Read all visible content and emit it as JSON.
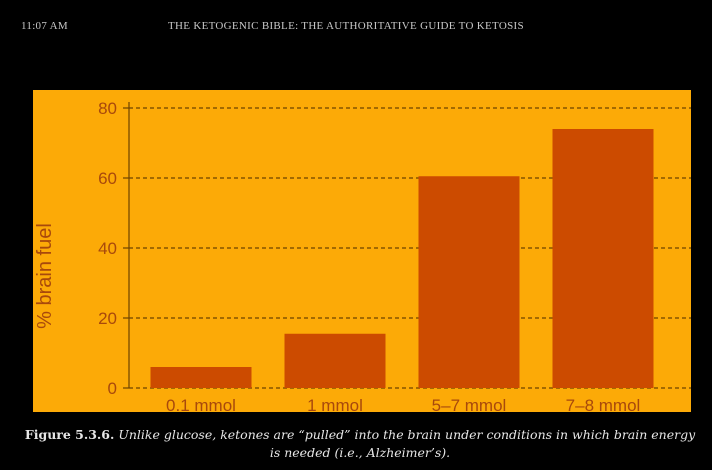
{
  "status_bar": {
    "time": "11:07 AM",
    "book_title": "THE KETOGENIC BIBLE: THE AUTHORITATIVE GUIDE TO KETOSIS"
  },
  "colors": {
    "page_background": "#000000",
    "plot_background": "#fcaa07",
    "bar": "#cc4b00",
    "axis_text": "#a8490c",
    "grid": "#6e4300"
  },
  "chart_data": {
    "type": "bar",
    "categories": [
      "0.1 mmol",
      "1 mmol",
      "5–7 mmol",
      "7–8 mmol"
    ],
    "values": [
      6,
      15.5,
      60.5,
      74
    ],
    "title": "",
    "xlabel": "",
    "ylabel": "% brain fuel",
    "ylim": [
      0,
      80
    ],
    "yticks": [
      0,
      20,
      40,
      60,
      80
    ],
    "grid": "horizontal dashed",
    "legend": "none"
  },
  "caption": {
    "figure_number": "Figure 5.3.6.",
    "text": "Unlike glucose, ketones are “pulled” into the brain under conditions in which brain energy is needed (i.e., Alzheimer’s)."
  }
}
